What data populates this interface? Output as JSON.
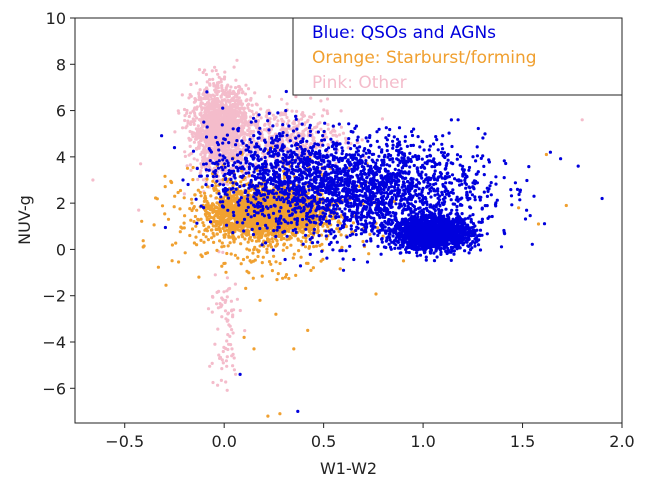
{
  "chart_data": {
    "type": "scatter",
    "title": "",
    "xlabel": "W1-W2",
    "ylabel": "NUV-g",
    "xlim": [
      -0.75,
      2.0
    ],
    "ylim": [
      -7.5,
      10.0
    ],
    "xticks": [
      -0.5,
      0.0,
      0.5,
      1.0,
      1.5,
      2.0
    ],
    "xtick_labels": [
      "−0.5",
      "0.0",
      "0.5",
      "1.0",
      "1.5",
      "2.0"
    ],
    "yticks": [
      -6,
      -4,
      -2,
      0,
      2,
      4,
      6,
      8,
      10
    ],
    "ytick_labels": [
      "−6",
      "−4",
      "−2",
      "0",
      "2",
      "4",
      "6",
      "8",
      "10"
    ],
    "grid": false,
    "legend_position": "top-right",
    "legend": [
      {
        "label": "Blue: QSOs and AGNs",
        "color": "#0000dd"
      },
      {
        "label": "Orange: Starburst/forming",
        "color": "#f0a030"
      },
      {
        "label": "Pink: Other",
        "color": "#f4bccb"
      }
    ],
    "series": [
      {
        "name": "QSOs and AGNs",
        "color": "#0000dd",
        "clusters": [
          {
            "cx": 1.05,
            "cy": 0.7,
            "sx": 0.1,
            "sy": 0.35,
            "n": 1700
          },
          {
            "cx": 0.7,
            "cy": 2.6,
            "sx": 0.3,
            "sy": 1.1,
            "n": 2000
          },
          {
            "cx": 0.25,
            "cy": 3.6,
            "sx": 0.17,
            "sy": 0.9,
            "n": 500
          }
        ],
        "outliers": [
          [
            0.27,
            5.9
          ],
          [
            0.31,
            6.0
          ],
          [
            0.08,
            -5.4
          ],
          [
            0.37,
            -7.0
          ],
          [
            1.78,
            3.6
          ],
          [
            1.9,
            2.2
          ],
          [
            1.64,
            4.2
          ],
          [
            0.6,
            -0.9
          ]
        ]
      },
      {
        "name": "Starburst/forming",
        "color": "#f0a030",
        "clusters": [
          {
            "cx": 0.22,
            "cy": 1.6,
            "sx": 0.13,
            "sy": 0.45,
            "n": 2600
          },
          {
            "cx": 0.2,
            "cy": 1.4,
            "sx": 0.22,
            "sy": 1.1,
            "n": 700
          }
        ],
        "outliers": [
          [
            0.1,
            -3.8
          ],
          [
            0.26,
            -2.8
          ],
          [
            0.15,
            -4.3
          ],
          [
            0.35,
            -4.3
          ],
          [
            0.22,
            -7.2
          ],
          [
            0.28,
            -7.1
          ],
          [
            0.42,
            -3.5
          ],
          [
            0.18,
            -2.2
          ],
          [
            1.62,
            4.1
          ],
          [
            1.72,
            1.9
          ],
          [
            1.58,
            1.1
          ],
          [
            1.48,
            1.8
          ],
          [
            -0.28,
            1.3
          ]
        ]
      },
      {
        "name": "Other",
        "color": "#f4bccb",
        "clusters": [
          {
            "cx": -0.02,
            "cy": 5.2,
            "sx": 0.07,
            "sy": 0.9,
            "n": 1500
          },
          {
            "cx": 0.3,
            "cy": 4.8,
            "sx": 0.15,
            "sy": 0.7,
            "n": 500
          },
          {
            "cx": 0.0,
            "cy": -3.5,
            "sx": 0.04,
            "sy": 1.5,
            "n": 80
          }
        ],
        "outliers": [
          [
            -0.66,
            3.0
          ],
          [
            -0.43,
            1.7
          ],
          [
            -0.42,
            3.7
          ],
          [
            1.8,
            5.6
          ],
          [
            -0.2,
            2.4
          ],
          [
            -0.12,
            3.3
          ],
          [
            0.75,
            2.1
          ]
        ]
      }
    ]
  }
}
